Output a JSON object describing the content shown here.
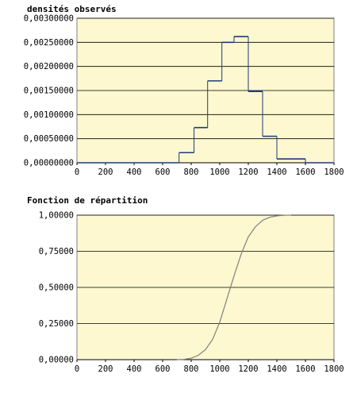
{
  "chart_data": [
    {
      "type": "line",
      "title": "densités observés",
      "xlabel": "",
      "ylabel": "",
      "xlim": [
        0,
        1800
      ],
      "ylim": [
        0,
        0.003
      ],
      "x_ticks": [
        "0",
        "200",
        "400",
        "600",
        "800",
        "1000",
        "1200",
        "1400",
        "1600",
        "1800"
      ],
      "y_ticks": [
        "0,00000000",
        "0,00050000",
        "0,00100000",
        "0,00150000",
        "0,00200000",
        "0,00250000",
        "0,00300000"
      ],
      "grid": true,
      "series": [
        {
          "bins": [
            {
              "x0": 0,
              "x1": 100,
              "y": 0
            },
            {
              "x0": 100,
              "x1": 200,
              "y": 0
            },
            {
              "x0": 200,
              "x1": 300,
              "y": 0
            },
            {
              "x0": 300,
              "x1": 400,
              "y": 0
            },
            {
              "x0": 400,
              "x1": 500,
              "y": 0
            },
            {
              "x0": 500,
              "x1": 600,
              "y": 0
            },
            {
              "x0": 600,
              "x1": 715,
              "y": 0
            },
            {
              "x0": 715,
              "x1": 820,
              "y": 0.00021
            },
            {
              "x0": 820,
              "x1": 915,
              "y": 0.00073
            },
            {
              "x0": 915,
              "x1": 1015,
              "y": 0.0017
            },
            {
              "x0": 1015,
              "x1": 1100,
              "y": 0.0025
            },
            {
              "x0": 1100,
              "x1": 1200,
              "y": 0.00262
            },
            {
              "x0": 1200,
              "x1": 1300,
              "y": 0.00148
            },
            {
              "x0": 1300,
              "x1": 1400,
              "y": 0.00055
            },
            {
              "x0": 1400,
              "x1": 1600,
              "y": 8e-05
            },
            {
              "x0": 1600,
              "x1": 1800,
              "y": 0
            }
          ]
        }
      ]
    },
    {
      "type": "line",
      "title": "Fonction de répartition",
      "xlabel": "",
      "ylabel": "",
      "xlim": [
        0,
        1800
      ],
      "ylim": [
        0,
        1
      ],
      "x_ticks": [
        "0",
        "200",
        "400",
        "600",
        "800",
        "1000",
        "1200",
        "1400",
        "1600",
        "1800"
      ],
      "y_ticks": [
        "0,00000",
        "0,25000",
        "0,50000",
        "0,75000",
        "1,00000"
      ],
      "grid": true,
      "series": [
        {
          "x": [
            700,
            750,
            800,
            850,
            900,
            950,
            1000,
            1050,
            1100,
            1150,
            1200,
            1250,
            1300,
            1350,
            1400,
            1450,
            1500
          ],
          "y": [
            0,
            0.002,
            0.01,
            0.03,
            0.07,
            0.14,
            0.26,
            0.42,
            0.58,
            0.73,
            0.85,
            0.92,
            0.965,
            0.985,
            0.995,
            0.999,
            1.0
          ]
        }
      ]
    }
  ]
}
